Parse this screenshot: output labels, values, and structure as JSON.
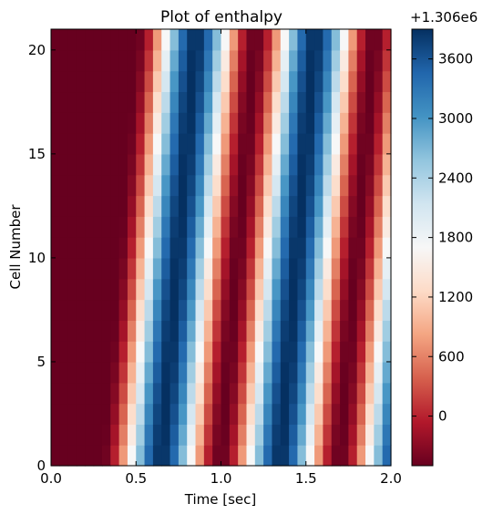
{
  "chart_data": {
    "type": "heatmap",
    "title": "Plot of enthalpy",
    "xlabel": "Time [sec]",
    "ylabel": "Cell Number",
    "xlim": [
      0.0,
      2.0
    ],
    "ylim": [
      0,
      21
    ],
    "xticks": [
      "0.0",
      "0.5",
      "1.0",
      "1.5",
      "2.0"
    ],
    "yticks": [
      "0",
      "5",
      "10",
      "15",
      "20"
    ],
    "x_step": 0.05,
    "rows": 21,
    "colormap": "RdBu",
    "colormap_stops": [
      "#67001f",
      "#b2182b",
      "#d6604d",
      "#f4a582",
      "#fddbc7",
      "#f7f7f7",
      "#d1e5f0",
      "#92c5de",
      "#4393c3",
      "#2166ac",
      "#053061"
    ],
    "colorbar": {
      "offset_label": "+1.306e6",
      "range": [
        -500,
        3900
      ],
      "ticks": [
        "0",
        "600",
        "1200",
        "1800",
        "2400",
        "3000",
        "3600"
      ]
    },
    "value_pattern": {
      "description_of_values": "values in colorbar units (+1.306e6), per cell row vs time",
      "min": -500,
      "max": 3900,
      "wave_period_sec": 0.7,
      "onset_time_row0_sec": 0.3,
      "onset_time_row20_sec": 0.5
    }
  }
}
